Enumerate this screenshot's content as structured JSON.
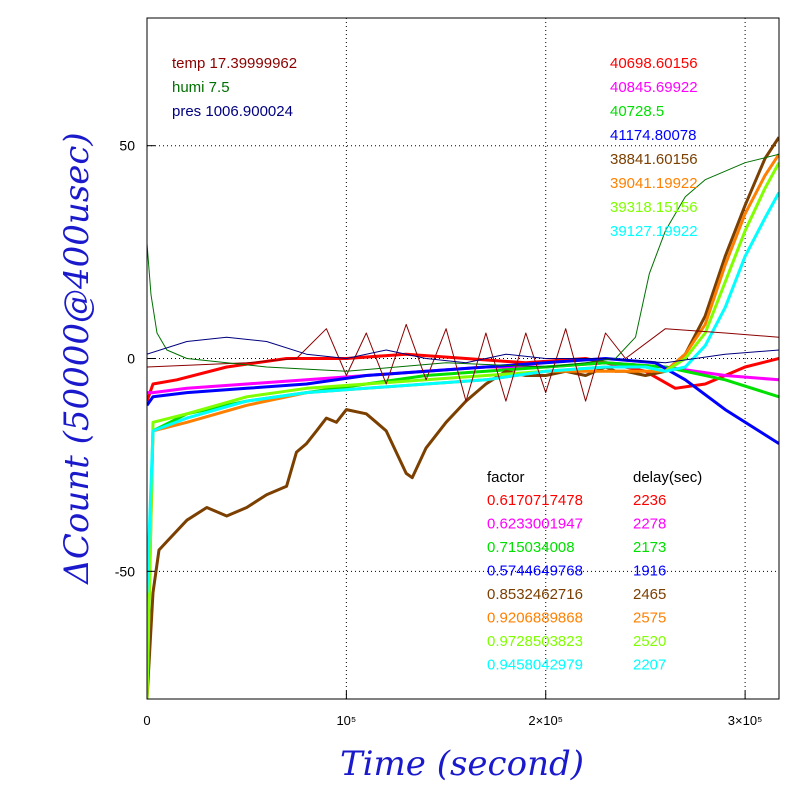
{
  "chart_data": {
    "type": "line",
    "xlabel": "Time (second)",
    "ylabel": "ΔCount (50000@400usec)",
    "xlim": [
      0,
      317000
    ],
    "ylim": [
      -80,
      80
    ],
    "x_ticks": [
      {
        "value": 0,
        "label": "0"
      },
      {
        "value": 100000,
        "label": "10⁵"
      },
      {
        "value": 200000,
        "label": "2×10⁵"
      },
      {
        "value": 300000,
        "label": "3×10⁵"
      }
    ],
    "y_ticks": [
      {
        "value": 50,
        "label": "50"
      },
      {
        "value": 0,
        "label": "0"
      },
      {
        "value": -50,
        "label": "-50"
      }
    ],
    "grid": true,
    "environment": [
      {
        "label": "temp 17.39999962",
        "color": "#8b0000"
      },
      {
        "label": "humi 7.5",
        "color": "#007000"
      },
      {
        "label": "pres 1006.900024",
        "color": "#00007f"
      }
    ],
    "series": [
      {
        "name": "40698.60156",
        "factor": "0.6170717478",
        "delay": "2236",
        "color": "#ff0000",
        "x": [
          0,
          3000,
          15000,
          40000,
          70000,
          100000,
          130000,
          160000,
          190000,
          220000,
          250000,
          265000,
          280000,
          300000,
          317000
        ],
        "y": [
          -10,
          -6,
          -5,
          -2,
          0,
          0,
          1,
          0,
          -1,
          0,
          -3,
          -7,
          -6,
          -2,
          0
        ]
      },
      {
        "name": "40845.69922",
        "factor": "0.6233001947",
        "delay": "2278",
        "color": "#ff00ff",
        "x": [
          0,
          3000,
          20000,
          50000,
          80000,
          110000,
          140000,
          170000,
          200000,
          230000,
          260000,
          290000,
          317000
        ],
        "y": [
          -8,
          -8,
          -7,
          -6,
          -5,
          -4,
          -3,
          -2,
          -2,
          -1,
          -2,
          -4,
          -5
        ]
      },
      {
        "name": "40728.5",
        "factor": "0.715034008",
        "delay": "2173",
        "color": "#00e000",
        "x": [
          0,
          3000,
          20000,
          50000,
          80000,
          110000,
          140000,
          170000,
          200000,
          230000,
          260000,
          290000,
          317000
        ],
        "y": [
          -65,
          -17,
          -13,
          -10,
          -8,
          -6,
          -4,
          -3,
          -2,
          -1,
          -2,
          -5,
          -9
        ]
      },
      {
        "name": "41174.80078",
        "factor": "0.5744649768",
        "delay": "1916",
        "color": "#0000ff",
        "x": [
          0,
          3000,
          20000,
          50000,
          80000,
          110000,
          140000,
          170000,
          200000,
          230000,
          255000,
          270000,
          290000,
          317000
        ],
        "y": [
          -11,
          -9,
          -8,
          -7,
          -6,
          -4,
          -3,
          -2,
          -1,
          0,
          -1,
          -5,
          -12,
          -20
        ]
      },
      {
        "name": "38841.60156",
        "factor": "0.8532462716",
        "delay": "2465",
        "color": "#7b3f00",
        "x": [
          0,
          3000,
          6000,
          10000,
          20000,
          30000,
          40000,
          50000,
          60000,
          70000,
          75000,
          80000,
          85000,
          90000,
          95000,
          100000,
          110000,
          115000,
          120000,
          125000,
          130000,
          133000,
          140000,
          150000,
          160000,
          170000,
          180000,
          190000,
          200000,
          210000,
          220000,
          230000,
          235000,
          240000,
          250000,
          260000,
          270000,
          280000,
          290000,
          300000,
          310000,
          317000
        ],
        "y": [
          -80,
          -55,
          -45,
          -43,
          -38,
          -35,
          -37,
          -35,
          -32,
          -30,
          -22,
          -20,
          -17,
          -14,
          -15,
          -12,
          -13,
          -15,
          -17,
          -22,
          -27,
          -28,
          -21,
          -15,
          -10,
          -6,
          -3,
          -4,
          -4,
          -3,
          -4,
          -2,
          -3,
          -3,
          -4,
          -3,
          1,
          10,
          24,
          36,
          47,
          52
        ]
      },
      {
        "name": "39041.19922",
        "factor": "0.9206889868",
        "delay": "2575",
        "color": "#ff8000",
        "x": [
          0,
          3000,
          20000,
          50000,
          80000,
          110000,
          140000,
          170000,
          200000,
          230000,
          250000,
          260000,
          270000,
          280000,
          290000,
          300000,
          310000,
          317000
        ],
        "y": [
          -80,
          -17,
          -15,
          -11,
          -8,
          -7,
          -6,
          -5,
          -3,
          -3,
          -3,
          -3,
          1,
          8,
          22,
          34,
          43,
          48
        ]
      },
      {
        "name": "39318.15156",
        "factor": "0.9728503823",
        "delay": "2520",
        "color": "#80ff00",
        "x": [
          0,
          3000,
          20000,
          50000,
          80000,
          110000,
          140000,
          170000,
          200000,
          230000,
          250000,
          260000,
          270000,
          280000,
          290000,
          300000,
          310000,
          317000
        ],
        "y": [
          -80,
          -15,
          -13,
          -9,
          -7,
          -6,
          -5,
          -4,
          -3,
          -2,
          -2,
          -3,
          0,
          6,
          18,
          30,
          40,
          46
        ]
      },
      {
        "name": "39127.19922",
        "factor": "0.9458042979",
        "delay": "2207",
        "color": "#00ffff",
        "x": [
          0,
          3000,
          20000,
          50000,
          80000,
          110000,
          140000,
          170000,
          200000,
          230000,
          250000,
          260000,
          270000,
          280000,
          290000,
          300000,
          310000,
          317000
        ],
        "y": [
          -55,
          -17,
          -14,
          -10,
          -8,
          -7,
          -6,
          -5,
          -3,
          -2,
          -2,
          -3,
          -2,
          3,
          12,
          24,
          33,
          39
        ]
      },
      {
        "name": "temp",
        "env": true,
        "color": "#8b0000",
        "x": [
          0,
          50000,
          75000,
          90000,
          100000,
          110000,
          120000,
          130000,
          140000,
          150000,
          160000,
          170000,
          180000,
          190000,
          200000,
          210000,
          220000,
          230000,
          240000,
          260000,
          290000,
          317000
        ],
        "y": [
          -2,
          -1,
          0,
          7,
          -4,
          6,
          -6,
          8,
          -5,
          7,
          -10,
          6,
          -10,
          6,
          -8,
          7,
          -10,
          6,
          0,
          7,
          6,
          5
        ]
      },
      {
        "name": "humi",
        "env": true,
        "color": "#007000",
        "x": [
          0,
          2000,
          5000,
          10000,
          20000,
          60000,
          100000,
          150000,
          200000,
          220000,
          235000,
          245000,
          252000,
          260000,
          270000,
          280000,
          290000,
          300000,
          317000
        ],
        "y": [
          27,
          15,
          6,
          2,
          0,
          -2,
          -3,
          -1,
          -2,
          -1,
          0,
          5,
          20,
          30,
          38,
          42,
          44,
          46,
          48
        ]
      },
      {
        "name": "pres",
        "env": true,
        "color": "#00007f",
        "x": [
          0,
          20000,
          40000,
          60000,
          80000,
          100000,
          120000,
          140000,
          160000,
          180000,
          200000,
          230000,
          260000,
          290000,
          317000
        ],
        "y": [
          1,
          4,
          5,
          4,
          1,
          0,
          2,
          0,
          -1,
          1,
          0,
          0,
          -1,
          1,
          2
        ]
      }
    ],
    "table": {
      "factor_header": "factor",
      "delay_header": "delay(sec)"
    }
  }
}
